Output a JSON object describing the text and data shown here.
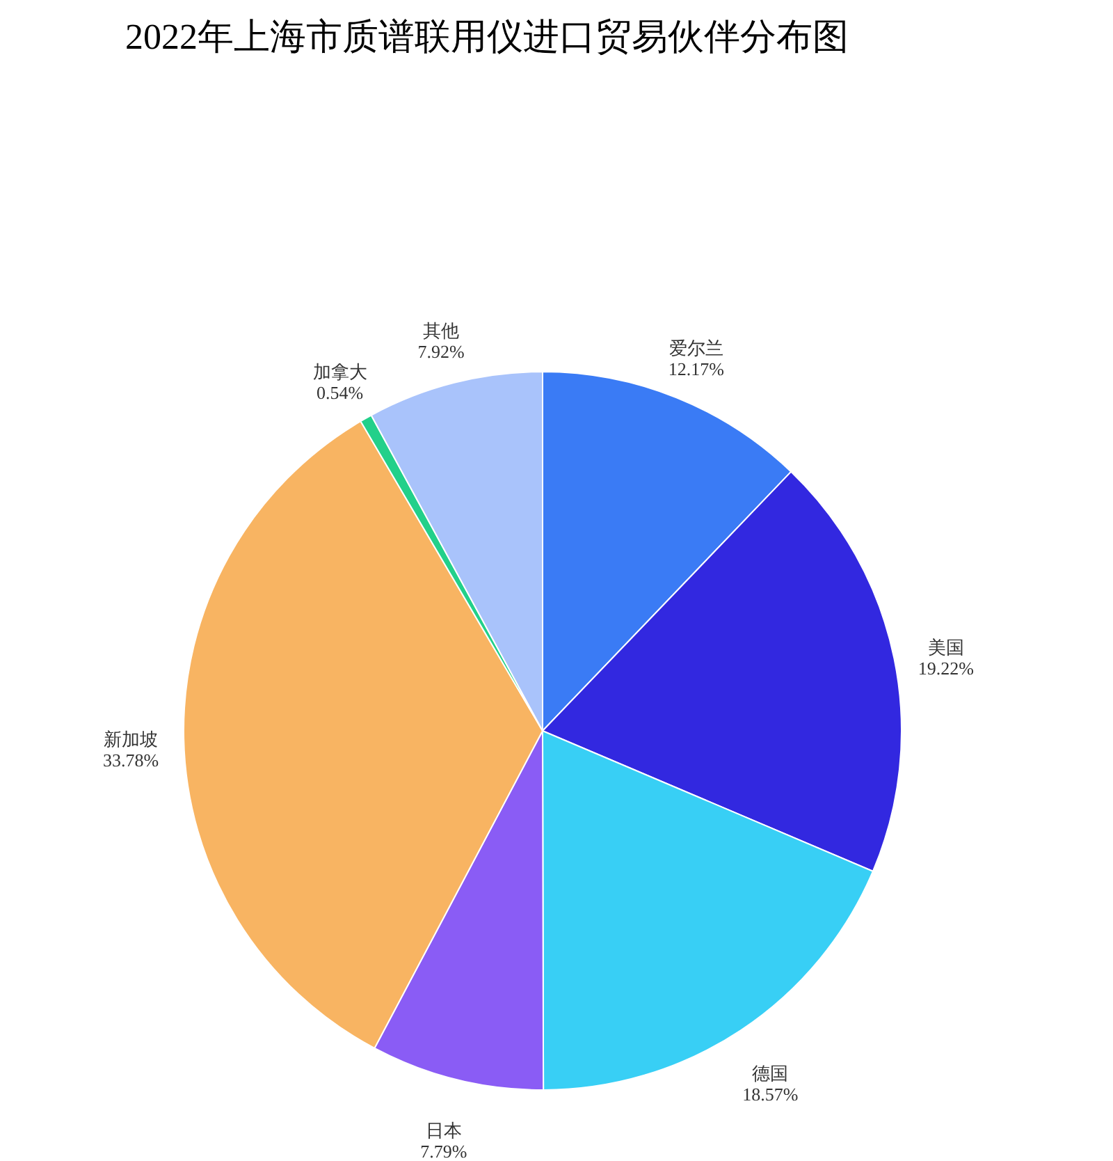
{
  "chart_data": {
    "type": "pie",
    "title": "2022年上海市质谱联用仪进口贸易伙伴分布图",
    "categories": [
      "爱尔兰",
      "美国",
      "德国",
      "日本",
      "新加坡",
      "加拿大",
      "其他"
    ],
    "values": [
      12.17,
      19.22,
      18.57,
      7.79,
      33.78,
      0.54,
      7.92
    ],
    "value_labels": [
      "12.17%",
      "19.22%",
      "18.57%",
      "7.79%",
      "33.78%",
      "0.54%",
      "7.92%"
    ],
    "colors": [
      "#3a7bf5",
      "#3228e0",
      "#38cff5",
      "#8a5cf5",
      "#f8b462",
      "#22d08a",
      "#a9c3fb"
    ],
    "legend": false
  }
}
